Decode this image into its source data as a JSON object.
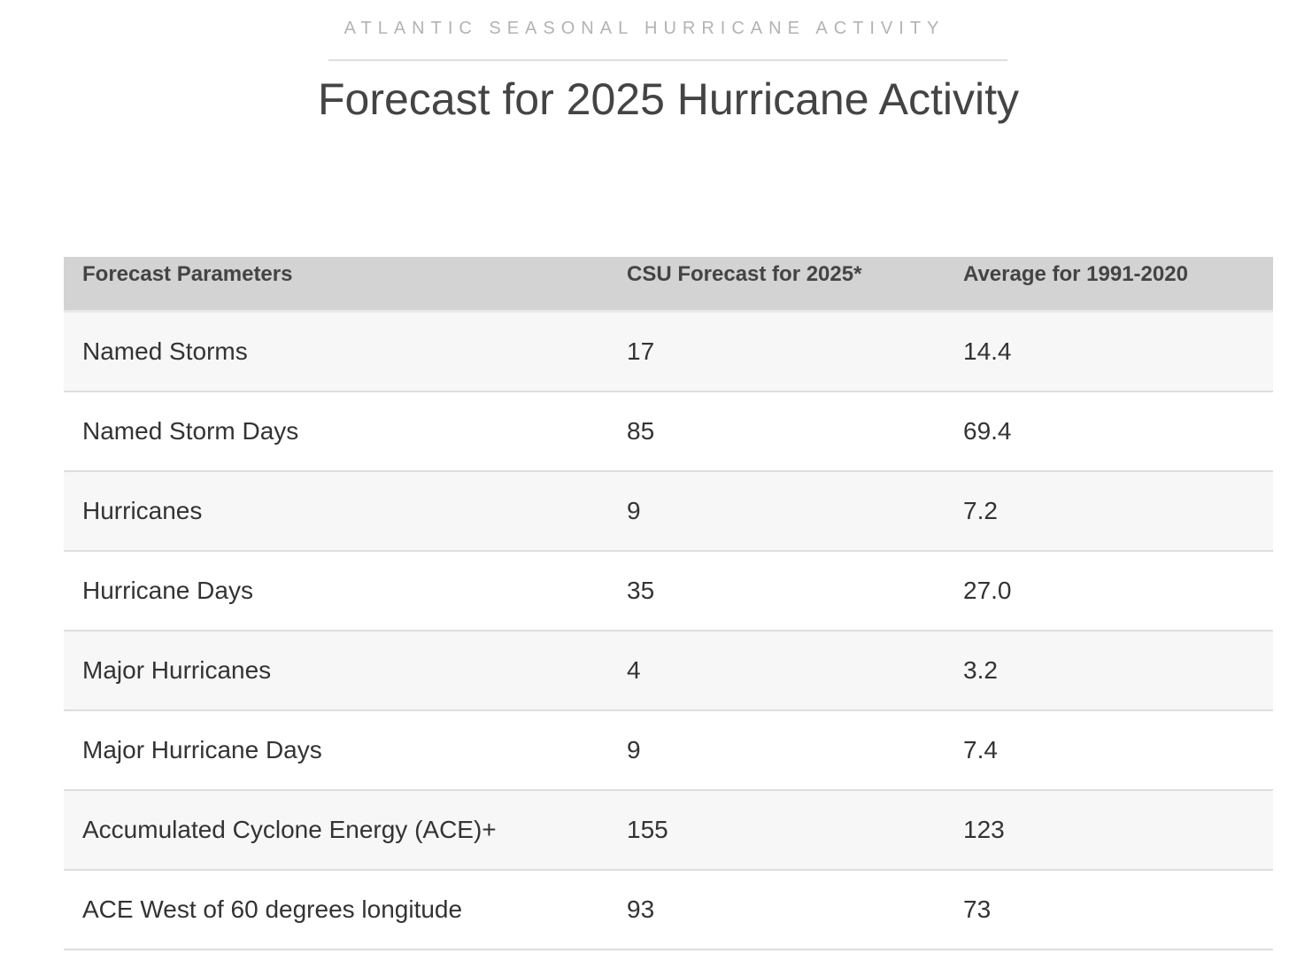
{
  "header": {
    "eyebrow": "ATLANTIC SEASONAL HURRICANE ACTIVITY",
    "title": "Forecast for 2025 Hurricane Activity"
  },
  "table": {
    "columns": [
      "Forecast Parameters",
      "CSU Forecast for 2025*",
      "Average for 1991-2020"
    ],
    "rows": [
      [
        "Named Storms",
        "17",
        "14.4"
      ],
      [
        "Named Storm Days",
        "85",
        "69.4"
      ],
      [
        "Hurricanes",
        "9",
        "7.2"
      ],
      [
        "Hurricane Days",
        "35",
        "27.0"
      ],
      [
        "Major Hurricanes",
        "4",
        "3.2"
      ],
      [
        "Major Hurricane Days",
        "9",
        "7.4"
      ],
      [
        "Accumulated Cyclone Energy (ACE)+",
        "155",
        "123"
      ],
      [
        "ACE West of 60 degrees longitude",
        "93",
        "73"
      ]
    ]
  }
}
